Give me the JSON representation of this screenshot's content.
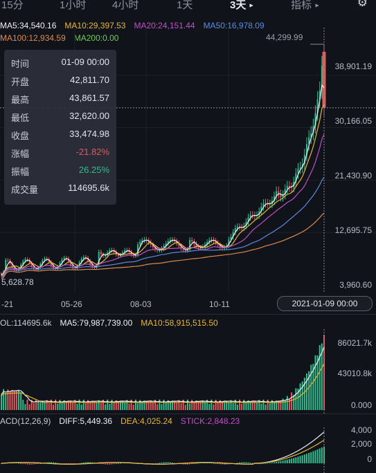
{
  "tabs": [
    {
      "label": "15分",
      "active": false
    },
    {
      "label": "1小时",
      "active": false
    },
    {
      "label": "4小时",
      "active": false
    },
    {
      "label": "1天",
      "active": false
    },
    {
      "label": "3天",
      "active": true
    },
    {
      "label": "指标",
      "active": false
    }
  ],
  "ma_line1": [
    {
      "text": "MA5:34,540.16",
      "color": "#f0f1f5"
    },
    {
      "text": "MA10:29,397.53",
      "color": "#e8b73a"
    },
    {
      "text": "MA20:24,151.44",
      "color": "#c24fc8"
    },
    {
      "text": "MA50:16,978.09",
      "color": "#5b8be0"
    }
  ],
  "ma_line2": [
    {
      "text": "MA100:12,934.59",
      "color": "#e08a4a"
    },
    {
      "text": "MA200:0.00",
      "color": "#6fcf4e"
    }
  ],
  "info": {
    "rows": [
      {
        "label": "时间",
        "value": "01-09 00:00",
        "color": "#e3e5ec"
      },
      {
        "label": "开盘",
        "value": "42,811.70",
        "color": "#e3e5ec"
      },
      {
        "label": "最高",
        "value": "43,861.57",
        "color": "#e3e5ec"
      },
      {
        "label": "最低",
        "value": "32,620.00",
        "color": "#e3e5ec"
      },
      {
        "label": "收盘",
        "value": "33,474.98",
        "color": "#e3e5ec"
      },
      {
        "label": "涨幅",
        "value": "-21.82%",
        "color": "#e05a5a"
      },
      {
        "label": "振幅",
        "value": "26.25%",
        "color": "#2fbf8f"
      },
      {
        "label": "成交量",
        "value": "114695.6k",
        "color": "#e3e5ec"
      }
    ]
  },
  "price_axis": [
    "38,901.19",
    "30,166.05",
    "21,430.90",
    "12,695.75",
    "3,960.60"
  ],
  "high_marker": "44,299.99",
  "low_marker": "5,628.78",
  "date_axis": [
    "-21",
    "05-26",
    "08-03",
    "10-11"
  ],
  "crosshair_date": "2021-01-09 00:00",
  "volume": {
    "header": [
      {
        "text": "OL:114695.6k",
        "color": "#c9ccd6"
      },
      {
        "text": "MA5:79,987,739.00",
        "color": "#f0f1f5"
      },
      {
        "text": "MA10:58,915,515.50",
        "color": "#e8b73a"
      }
    ],
    "axis": [
      "86021.7k",
      "43010.8k",
      "0.000"
    ]
  },
  "macd": {
    "header": [
      {
        "text": "ACD(12,26,9)",
        "color": "#c9ccd6"
      },
      {
        "text": "DIFF:5,449.36",
        "color": "#f0f1f5"
      },
      {
        "text": "DEA:4,025.24",
        "color": "#e8b73a"
      },
      {
        "text": "STICK:2,848.23",
        "color": "#c24fc8"
      }
    ],
    "axis": [
      "4,000",
      "2,000",
      "0"
    ]
  },
  "colors": {
    "up": "#2fbf8f",
    "down": "#e05a5a",
    "ma5": "#f0f1f5",
    "ma10": "#e8b73a",
    "ma20": "#c24fc8",
    "ma50": "#5b8be0",
    "ma100": "#e08a4a"
  }
}
